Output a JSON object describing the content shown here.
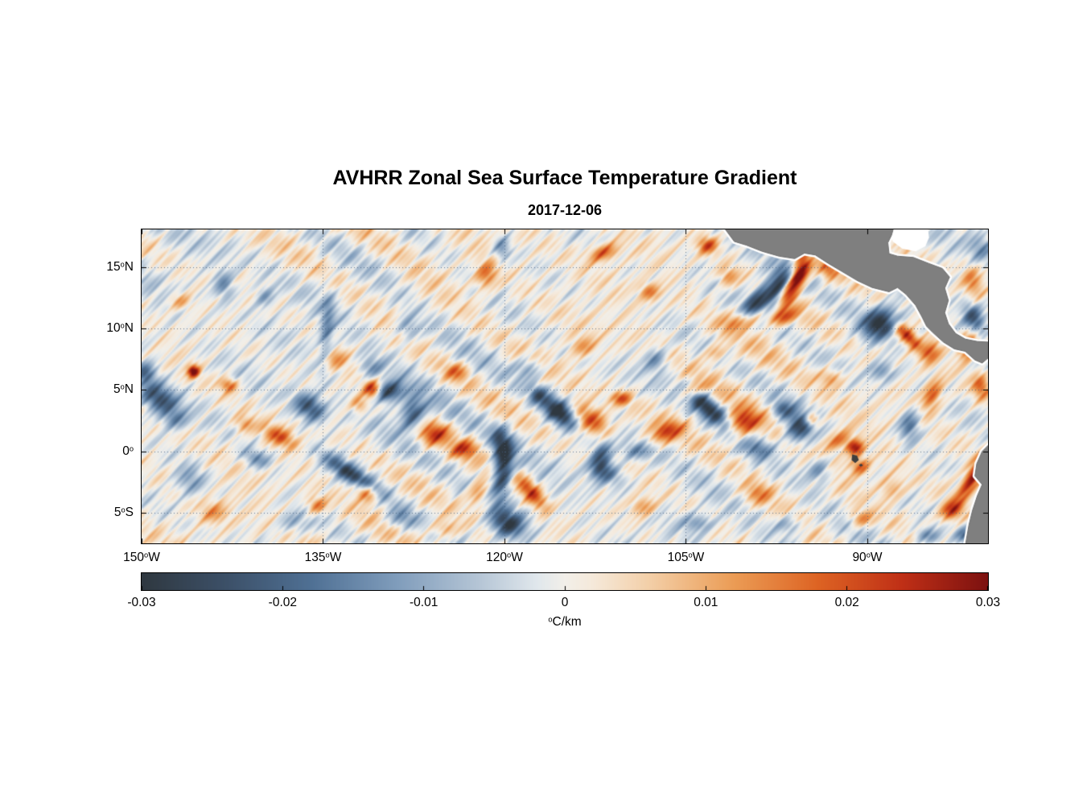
{
  "chart_data": {
    "type": "heatmap",
    "title": "AVHRR Zonal Sea Surface Temperature Gradient",
    "subtitle": "2017-12-06",
    "x_axis": {
      "range": [
        150,
        80.02
      ],
      "units": "degrees West",
      "ticks": [
        {
          "v": 150,
          "label": "150°W"
        },
        {
          "v": 135,
          "label": "135°W"
        },
        {
          "v": 120,
          "label": "120°W"
        },
        {
          "v": 105,
          "label": "105°W"
        },
        {
          "v": 90,
          "label": "90°W"
        }
      ]
    },
    "y_axis": {
      "range": [
        -7.49,
        18.08
      ],
      "units": "degrees latitude",
      "ticks": [
        {
          "v": 15,
          "label": "15°N"
        },
        {
          "v": 10,
          "label": "10°N"
        },
        {
          "v": 5,
          "label": "5°N"
        },
        {
          "v": 0,
          "label": "0°"
        },
        {
          "v": -5,
          "label": "5°S"
        }
      ]
    },
    "grid": {
      "lats": [
        15,
        10,
        5,
        0,
        -5
      ],
      "lons": [
        135,
        120,
        105,
        90
      ],
      "style": "dotted",
      "color": "rgba(70,95,125,0.8)"
    },
    "colorbar": {
      "label": "°C/km",
      "min": -0.03,
      "max": 0.03,
      "tick_values": [
        -0.03,
        -0.02,
        -0.01,
        0,
        0.01,
        0.02,
        0.03
      ],
      "tick_labels": [
        "-0.03",
        "-0.02",
        "-0.01",
        "0",
        "0.01",
        "0.02",
        "0.03"
      ],
      "stops": [
        [
          -0.03,
          "#2f3840"
        ],
        [
          -0.024,
          "#3c5068"
        ],
        [
          -0.018,
          "#4f7094"
        ],
        [
          -0.012,
          "#7f9cbb"
        ],
        [
          -0.006,
          "#b6c6d6"
        ],
        [
          -0.002,
          "#e0e7ec"
        ],
        [
          0.0,
          "#f2efe9"
        ],
        [
          0.002,
          "#f5e9da"
        ],
        [
          0.006,
          "#f3cfa8"
        ],
        [
          0.012,
          "#eb9c55"
        ],
        [
          0.018,
          "#dd6323"
        ],
        [
          0.024,
          "#bf2f16"
        ],
        [
          0.03,
          "#7c1110"
        ]
      ]
    },
    "land_color": "#7f7f7f",
    "island_color": "#3f3f3f",
    "field_feature_format": [
      "lonW",
      "lat",
      "amplitude_C_per_km",
      "sigma_lon",
      "sigma_lat",
      "rotation_deg"
    ],
    "field_features": [
      [
        99.2,
        12.2,
        -0.026,
        0.5,
        1.5,
        35
      ],
      [
        97.3,
        13.3,
        -0.03,
        0.55,
        1.5,
        30
      ],
      [
        96.2,
        13.6,
        0.03,
        0.5,
        1.4,
        25
      ],
      [
        95.4,
        14.7,
        0.022,
        0.45,
        0.9,
        20
      ],
      [
        100.2,
        10.7,
        0.02,
        1.2,
        0.5,
        -20
      ],
      [
        97.2,
        10.9,
        0.018,
        0.9,
        0.45,
        -15
      ],
      [
        88.9,
        10.5,
        -0.03,
        1.1,
        0.8,
        -30
      ],
      [
        86.7,
        9.4,
        0.026,
        1.0,
        0.4,
        45
      ],
      [
        84.8,
        8.1,
        0.018,
        0.5,
        0.7,
        40
      ],
      [
        81.6,
        8.6,
        0.026,
        0.5,
        0.8,
        20
      ],
      [
        91.0,
        0.3,
        0.026,
        0.5,
        0.45,
        0
      ],
      [
        92.4,
        0.9,
        0.016,
        0.8,
        0.5,
        -30
      ],
      [
        95.6,
        1.9,
        -0.026,
        0.85,
        0.9,
        20
      ],
      [
        94.6,
        2.6,
        0.022,
        0.4,
        0.4,
        0
      ],
      [
        97.0,
        3.4,
        -0.016,
        0.6,
        0.5,
        0
      ],
      [
        100.3,
        2.3,
        0.024,
        1.0,
        0.7,
        -20
      ],
      [
        99.0,
        0.2,
        -0.012,
        0.8,
        0.5,
        0
      ],
      [
        103.3,
        3.7,
        -0.028,
        1.6,
        0.55,
        41
      ],
      [
        104.6,
        4.9,
        0.018,
        0.7,
        0.4,
        -20
      ],
      [
        106.6,
        1.6,
        0.02,
        1.0,
        0.5,
        -25
      ],
      [
        109.0,
        0.0,
        -0.012,
        0.9,
        0.5,
        0
      ],
      [
        112.0,
        -0.6,
        -0.022,
        0.6,
        1.0,
        15
      ],
      [
        110.3,
        4.3,
        0.018,
        0.6,
        0.4,
        0
      ],
      [
        112.8,
        2.5,
        0.024,
        1.2,
        0.7,
        35
      ],
      [
        115.5,
        3.2,
        -0.03,
        1.1,
        0.6,
        40
      ],
      [
        117.2,
        4.6,
        -0.016,
        0.5,
        0.5,
        0
      ],
      [
        117.8,
        -3.3,
        0.022,
        1.2,
        0.5,
        49
      ],
      [
        119.7,
        -5.9,
        -0.026,
        1.0,
        0.8,
        20
      ],
      [
        120.1,
        -1.5,
        -0.03,
        0.55,
        1.6,
        10
      ],
      [
        120.4,
        0.8,
        -0.018,
        0.5,
        0.9,
        0
      ],
      [
        122.2,
        -3.4,
        0.016,
        0.6,
        0.8,
        20
      ],
      [
        123.3,
        0.2,
        0.018,
        0.8,
        0.5,
        -15
      ],
      [
        125.8,
        1.4,
        0.02,
        0.9,
        0.6,
        -20
      ],
      [
        127.6,
        3.1,
        -0.024,
        0.7,
        0.9,
        25
      ],
      [
        129.6,
        4.8,
        -0.03,
        0.9,
        0.55,
        -20
      ],
      [
        130.9,
        5.0,
        0.026,
        0.5,
        0.5,
        0
      ],
      [
        132.0,
        3.8,
        0.014,
        0.5,
        0.5,
        0
      ],
      [
        132.6,
        -1.9,
        -0.024,
        2.0,
        0.5,
        33
      ],
      [
        131.4,
        -3.3,
        0.022,
        0.7,
        0.5,
        30
      ],
      [
        135.5,
        -4.4,
        0.016,
        0.6,
        0.5,
        0
      ],
      [
        136.1,
        3.6,
        -0.024,
        1.0,
        0.7,
        35
      ],
      [
        138.6,
        1.2,
        0.018,
        1.0,
        0.5,
        25
      ],
      [
        140.5,
        -0.6,
        -0.014,
        0.9,
        0.5,
        20
      ],
      [
        141.5,
        2.2,
        0.012,
        0.6,
        0.5,
        0
      ],
      [
        142.8,
        5.4,
        0.018,
        0.5,
        0.4,
        0
      ],
      [
        145.7,
        6.5,
        0.03,
        0.35,
        0.35,
        0
      ],
      [
        148.6,
        4.3,
        -0.026,
        1.3,
        0.8,
        35
      ],
      [
        149.7,
        6.4,
        -0.018,
        0.6,
        0.6,
        0
      ],
      [
        147.2,
        2.5,
        -0.012,
        0.8,
        0.6,
        0
      ],
      [
        146.0,
        -2.5,
        -0.012,
        0.9,
        0.9,
        0
      ],
      [
        146.8,
        12.2,
        0.012,
        0.7,
        0.5,
        0
      ],
      [
        143.2,
        13.6,
        -0.014,
        0.6,
        0.8,
        0
      ],
      [
        139.8,
        12.6,
        -0.012,
        0.6,
        0.6,
        0
      ],
      [
        134.7,
        9.7,
        -0.013,
        0.4,
        2.2,
        5
      ],
      [
        128.0,
        10.0,
        -0.012,
        0.7,
        0.7,
        0
      ],
      [
        121.5,
        14.3,
        0.016,
        0.6,
        0.8,
        20
      ],
      [
        120.2,
        16.5,
        -0.014,
        0.5,
        0.7,
        0
      ],
      [
        111.8,
        16.2,
        0.02,
        0.9,
        0.5,
        -15
      ],
      [
        108.0,
        13.0,
        0.014,
        0.6,
        0.5,
        0
      ],
      [
        103.2,
        16.8,
        0.02,
        0.6,
        0.5,
        0
      ],
      [
        93.0,
        6.0,
        0.012,
        0.7,
        0.5,
        0
      ],
      [
        85.2,
        12.5,
        0.014,
        0.5,
        0.8,
        0
      ],
      [
        81.2,
        10.8,
        -0.024,
        0.6,
        0.9,
        -20
      ],
      [
        81.2,
        -2.0,
        0.03,
        1.5,
        0.4,
        -57
      ],
      [
        83.0,
        -4.8,
        0.022,
        0.7,
        0.5,
        -30
      ],
      [
        81.6,
        -6.8,
        -0.02,
        0.8,
        0.5,
        0
      ],
      [
        85.0,
        -6.9,
        -0.016,
        0.9,
        0.5,
        10
      ],
      [
        88.0,
        -3.0,
        0.012,
        0.8,
        0.7,
        0
      ],
      [
        90.5,
        -5.5,
        0.014,
        0.7,
        0.5,
        0
      ],
      [
        86.5,
        2.2,
        -0.018,
        0.6,
        0.9,
        10
      ],
      [
        84.6,
        4.6,
        0.02,
        0.5,
        0.9,
        25
      ],
      [
        80.6,
        5.3,
        0.018,
        0.5,
        0.7,
        0
      ],
      [
        88.8,
        6.5,
        -0.014,
        0.8,
        0.6,
        0
      ],
      [
        128.5,
        -5.5,
        -0.012,
        0.9,
        0.6,
        0
      ],
      [
        125.0,
        -6.3,
        0.012,
        0.8,
        0.5,
        0
      ],
      [
        137.5,
        -5.8,
        -0.01,
        0.9,
        0.6,
        0
      ],
      [
        144.0,
        -5.0,
        0.01,
        0.8,
        0.6,
        0
      ],
      [
        134.0,
        7.5,
        0.012,
        0.8,
        0.6,
        0
      ],
      [
        131.0,
        6.8,
        -0.012,
        0.7,
        0.6,
        0
      ],
      [
        124.0,
        6.5,
        0.014,
        0.7,
        0.5,
        0
      ],
      [
        118.0,
        6.8,
        -0.012,
        0.8,
        0.6,
        0
      ],
      [
        113.5,
        8.5,
        0.012,
        0.8,
        0.6,
        0
      ],
      [
        107.5,
        7.5,
        -0.014,
        0.7,
        0.7,
        0
      ],
      [
        102.5,
        8.0,
        0.012,
        0.7,
        0.5,
        0
      ],
      [
        111.5,
        -1.8,
        -0.014,
        1.0,
        0.6,
        20
      ],
      [
        108.5,
        -4.5,
        0.014,
        0.8,
        0.6,
        0
      ],
      [
        104.0,
        -5.8,
        -0.012,
        0.9,
        0.5,
        0
      ],
      [
        99.0,
        -3.5,
        0.012,
        0.8,
        0.6,
        0
      ],
      [
        96.5,
        -6.0,
        -0.012,
        0.8,
        0.5,
        0
      ],
      [
        94.0,
        -1.5,
        -0.016,
        0.7,
        0.7,
        0
      ],
      [
        90.6,
        -1.2,
        0.018,
        0.6,
        0.5,
        0
      ],
      [
        96.0,
        16.8,
        0.014,
        0.6,
        0.4,
        0
      ],
      [
        101.5,
        14.2,
        0.012,
        0.6,
        0.6,
        0
      ],
      [
        81.3,
        13.8,
        0.014,
        0.6,
        1.0,
        -10
      ],
      [
        80.6,
        16.5,
        -0.01,
        0.7,
        0.8,
        0
      ],
      [
        93.2,
        14.8,
        0.014,
        0.5,
        0.5,
        0
      ]
    ],
    "noise_terms": [
      [
        0.002,
        0.25,
        0.1,
        0.8,
        0.15,
        0.3,
        1.7
      ],
      [
        0.005,
        1.6,
        0.9,
        1.3,
        0.7,
        2.0,
        4.1
      ],
      [
        0.0045,
        2.6,
        1.7,
        0.2,
        1.9,
        2.8,
        2.7
      ],
      [
        0.0035,
        4.2,
        3.1,
        5.1,
        3.6,
        4.4,
        1.9
      ],
      [
        0.0025,
        6.3,
        5.2,
        2.4,
        5.7,
        6.1,
        0.6
      ]
    ],
    "land_polygons": {
      "central_america": [
        [
          101.9,
          18.3
        ],
        [
          101.0,
          17.1
        ],
        [
          100.0,
          16.8
        ],
        [
          98.7,
          16.3
        ],
        [
          97.3,
          15.9
        ],
        [
          96.0,
          15.7
        ],
        [
          95.2,
          16.15
        ],
        [
          94.3,
          16.0
        ],
        [
          93.2,
          15.3
        ],
        [
          92.0,
          14.6
        ],
        [
          90.8,
          13.9
        ],
        [
          89.6,
          13.35
        ],
        [
          88.2,
          13.0
        ],
        [
          87.5,
          13.35
        ],
        [
          86.8,
          12.8
        ],
        [
          86.0,
          11.9
        ],
        [
          85.5,
          11.0
        ],
        [
          85.1,
          10.2
        ],
        [
          84.6,
          9.7
        ],
        [
          83.7,
          8.9
        ],
        [
          82.8,
          8.35
        ],
        [
          81.9,
          8.15
        ],
        [
          81.1,
          7.45
        ],
        [
          80.5,
          7.2
        ],
        [
          79.9,
          7.7
        ],
        [
          79.9,
          8.9
        ],
        [
          80.9,
          8.95
        ],
        [
          81.9,
          9.15
        ],
        [
          82.7,
          9.6
        ],
        [
          83.3,
          10.4
        ],
        [
          83.6,
          11.3
        ],
        [
          83.3,
          12.3
        ],
        [
          83.6,
          13.3
        ],
        [
          83.2,
          14.2
        ],
        [
          83.8,
          14.9
        ],
        [
          84.9,
          15.3
        ],
        [
          86.2,
          15.8
        ],
        [
          87.5,
          15.9
        ],
        [
          88.2,
          16.1
        ],
        [
          88.3,
          17.0
        ],
        [
          88.0,
          17.6
        ],
        [
          87.8,
          18.3
        ]
      ],
      "south_america": [
        [
          79.9,
          0.6
        ],
        [
          80.5,
          0.0
        ],
        [
          80.95,
          -1.0
        ],
        [
          81.1,
          -2.0
        ],
        [
          80.5,
          -2.7
        ],
        [
          80.9,
          -3.6
        ],
        [
          81.3,
          -4.8
        ],
        [
          81.6,
          -6.0
        ],
        [
          81.9,
          -7.7
        ],
        [
          79.9,
          -7.7
        ]
      ]
    },
    "missing_data_patches": [
      [
        [
          88.2,
          18.3
        ],
        [
          87.9,
          17.1
        ],
        [
          87.1,
          16.5
        ],
        [
          86.0,
          16.3
        ],
        [
          85.2,
          16.7
        ],
        [
          84.9,
          17.4
        ],
        [
          85.0,
          18.3
        ]
      ]
    ],
    "islands": [
      [
        [
          91.25,
          -0.25
        ],
        [
          90.85,
          -0.35
        ],
        [
          90.7,
          -0.7
        ],
        [
          91.0,
          -0.95
        ],
        [
          91.3,
          -0.7
        ]
      ],
      [
        [
          90.5,
          -1.0
        ],
        [
          90.35,
          -1.15
        ],
        [
          90.55,
          -1.25
        ],
        [
          90.7,
          -1.1
        ]
      ]
    ]
  }
}
